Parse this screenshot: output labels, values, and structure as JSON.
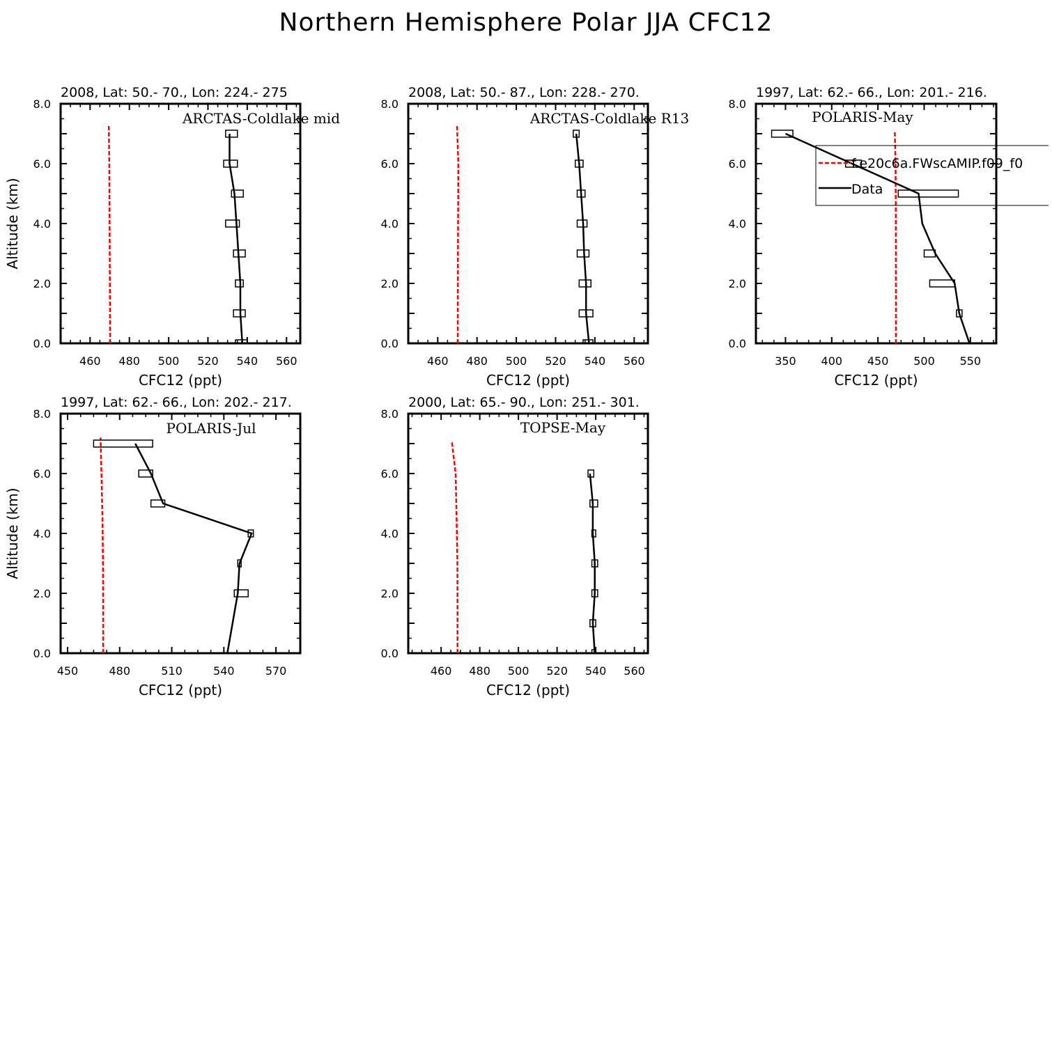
{
  "title": "Northern Hemisphere Polar JJA CFC12",
  "colors": {
    "model": "#ff0000",
    "data": "#000000",
    "box": "#000000"
  },
  "legend": {
    "model_label": "f.e20c6a.FWscAMIP.f09_f0",
    "data_label": "Data"
  },
  "chart_data": [
    {
      "type": "line",
      "title": "2008, Lat:  50.- 70., Lon: 224.- 275",
      "campaign": "ARCTAS-Coldlake mid",
      "xlabel": "CFC12 (ppt)",
      "ylabel": "Altitude (km)",
      "xlim": [
        445,
        567
      ],
      "ylim": [
        0,
        8
      ],
      "xticks": [
        "460",
        "480",
        "500",
        "520",
        "540",
        "560"
      ],
      "yticks": [
        "0.0",
        "2.0",
        "4.0",
        "6.0",
        "8.0"
      ],
      "model": {
        "x": [
          470.2,
          470.1,
          470.0,
          469.9,
          469.8,
          469.5
        ],
        "y": [
          0,
          1.5,
          3,
          4.5,
          6,
          7.3
        ]
      },
      "data": {
        "x": [
          537.5,
          536.5,
          536.5,
          535.5,
          534.5,
          533.5,
          531,
          531
        ],
        "y": [
          0,
          1,
          2,
          3,
          4,
          5,
          6,
          7
        ]
      },
      "boxes": [
        {
          "y": 0,
          "x0": 534,
          "x1": 540
        },
        {
          "y": 1,
          "x0": 533,
          "x1": 539
        },
        {
          "y": 2,
          "x0": 534,
          "x1": 538
        },
        {
          "y": 3,
          "x0": 533,
          "x1": 539
        },
        {
          "y": 4,
          "x0": 529,
          "x1": 536
        },
        {
          "y": 5,
          "x0": 532,
          "x1": 538
        },
        {
          "y": 6,
          "x0": 528,
          "x1": 535
        },
        {
          "y": 7,
          "x0": 529,
          "x1": 535
        }
      ]
    },
    {
      "type": "line",
      "title": "2008, Lat:  50.- 87., Lon: 228.- 270.",
      "campaign": "ARCTAS-Coldlake R13",
      "xlabel": "CFC12 (ppt)",
      "ylabel": "",
      "xlim": [
        445,
        567
      ],
      "ylim": [
        0,
        8
      ],
      "xticks": [
        "460",
        "480",
        "500",
        "520",
        "540",
        "560"
      ],
      "yticks": [
        "0.0",
        "2.0",
        "4.0",
        "6.0",
        "8.0"
      ],
      "model": {
        "x": [
          470.2,
          470.2,
          470.3,
          470.4,
          470.5,
          469.8
        ],
        "y": [
          0,
          1.5,
          3,
          4.5,
          6,
          7.3
        ]
      },
      "data": {
        "x": [
          537,
          535.5,
          535.5,
          534.5,
          534,
          533,
          532,
          530.5
        ],
        "y": [
          0,
          1,
          2,
          3,
          4,
          5,
          6,
          7
        ]
      },
      "boxes": [
        {
          "y": 0,
          "x0": 534,
          "x1": 539
        },
        {
          "y": 1,
          "x0": 532,
          "x1": 539
        },
        {
          "y": 2,
          "x0": 532,
          "x1": 538
        },
        {
          "y": 3,
          "x0": 531,
          "x1": 537
        },
        {
          "y": 4,
          "x0": 531,
          "x1": 536
        },
        {
          "y": 5,
          "x0": 531,
          "x1": 535
        },
        {
          "y": 6,
          "x0": 530,
          "x1": 534
        },
        {
          "y": 7,
          "x0": 529,
          "x1": 532
        }
      ]
    },
    {
      "type": "line",
      "title": "1997, Lat: 62.- 66., Lon: 201.- 216.",
      "campaign": "POLARIS-May",
      "xlabel": "CFC12 (ppt)",
      "ylabel": "",
      "xlim": [
        318,
        578
      ],
      "ylim": [
        0,
        8
      ],
      "xticks": [
        "350",
        "400",
        "450",
        "500",
        "550"
      ],
      "yticks": [
        "0.0",
        "2.0",
        "4.0",
        "6.0",
        "8.0"
      ],
      "model": {
        "x": [
          469.5,
          469.5,
          469.4,
          469.3,
          469.0,
          468.3
        ],
        "y": [
          0,
          1.5,
          3,
          4.5,
          6,
          7.1
        ]
      },
      "data": {
        "x": [
          549,
          538,
          533,
          512,
          498,
          494,
          350
        ],
        "y": [
          0,
          1,
          2,
          3,
          4,
          5,
          7
        ]
      },
      "boxes": [
        {
          "y": 1,
          "x0": 535,
          "x1": 541
        },
        {
          "y": 2,
          "x0": 506,
          "x1": 533
        },
        {
          "y": 3,
          "x0": 500,
          "x1": 512
        },
        {
          "y": 5,
          "x0": 472,
          "x1": 537
        },
        {
          "y": 6,
          "x0": 415,
          "x1": 432
        },
        {
          "y": 7,
          "x0": 335,
          "x1": 358
        }
      ]
    },
    {
      "type": "line",
      "title": "1997, Lat: 62.- 66., Lon: 202.- 217.",
      "campaign": "POLARIS-Jul",
      "xlabel": "CFC12 (ppt)",
      "ylabel": "Altitude (km)",
      "xlim": [
        446,
        584
      ],
      "ylim": [
        0,
        8
      ],
      "xticks": [
        "450",
        "480",
        "510",
        "540",
        "570"
      ],
      "yticks": [
        "0.0",
        "2.0",
        "4.0",
        "6.0",
        "8.0"
      ],
      "model": {
        "x": [
          470.5,
          470.5,
          470.4,
          470.1,
          469.5,
          469
        ],
        "y": [
          0,
          1.5,
          3,
          4.5,
          6,
          7.2
        ]
      },
      "data": {
        "x": [
          542,
          548,
          549,
          556,
          505,
          498,
          489
        ],
        "y": [
          0,
          2,
          3,
          4,
          5,
          6,
          7
        ]
      },
      "boxes": [
        {
          "y": 2,
          "x0": 546,
          "x1": 554
        },
        {
          "y": 3,
          "x0": 548,
          "x1": 550
        },
        {
          "y": 4,
          "x0": 554,
          "x1": 557
        },
        {
          "y": 5,
          "x0": 498,
          "x1": 506
        },
        {
          "y": 6,
          "x0": 491,
          "x1": 499
        },
        {
          "y": 7,
          "x0": 465,
          "x1": 499
        }
      ]
    },
    {
      "type": "line",
      "title": "2000, Lat: 65.- 90., Lon: 251.- 301.",
      "campaign": "TOPSE-May",
      "xlabel": "CFC12 (ppt)",
      "ylabel": "",
      "xlim": [
        443,
        567
      ],
      "ylim": [
        0,
        8
      ],
      "xticks": [
        "460",
        "480",
        "500",
        "520",
        "540",
        "560"
      ],
      "yticks": [
        "0.0",
        "2.0",
        "4.0",
        "6.0",
        "8.0"
      ],
      "model": {
        "x": [
          468.5,
          468.5,
          468.4,
          468.0,
          467.5,
          465.5
        ],
        "y": [
          0,
          1.5,
          3,
          4.5,
          6,
          7.1
        ]
      },
      "data": {
        "x": [
          539.5,
          538.5,
          539.5,
          539.5,
          538.5,
          538.5,
          537
        ],
        "y": [
          0,
          1,
          2,
          3,
          4,
          5,
          6
        ]
      },
      "boxes": [
        {
          "y": 0,
          "x0": 538,
          "x1": 540
        },
        {
          "y": 1,
          "x0": 537,
          "x1": 540
        },
        {
          "y": 2,
          "x0": 538,
          "x1": 541
        },
        {
          "y": 3,
          "x0": 538,
          "x1": 541
        },
        {
          "y": 4,
          "x0": 538,
          "x1": 540
        },
        {
          "y": 5,
          "x0": 537,
          "x1": 541
        },
        {
          "y": 6,
          "x0": 536,
          "x1": 539
        }
      ]
    }
  ]
}
